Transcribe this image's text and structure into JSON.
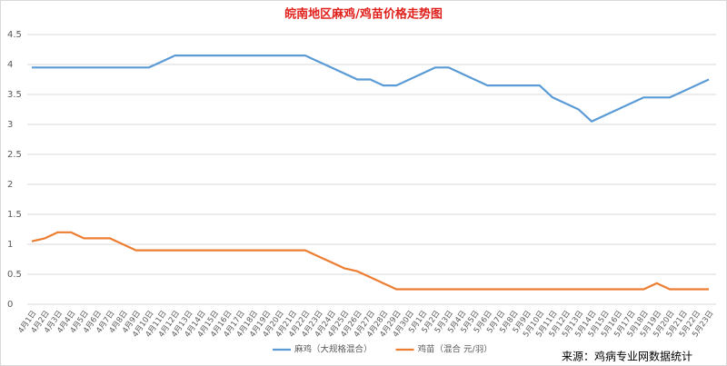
{
  "chart_data": {
    "type": "line",
    "title": "皖南地区麻鸡/鸡苗价格走势图",
    "source": "来源：鸡病专业网数据统计",
    "categories": [
      "4月1日",
      "4月2日",
      "4月3日",
      "4月4日",
      "4月5日",
      "4月6日",
      "4月7日",
      "4月8日",
      "4月9日",
      "4月10日",
      "4月11日",
      "4月12日",
      "4月13日",
      "4月14日",
      "4月15日",
      "4月16日",
      "4月17日",
      "4月18日",
      "4月19日",
      "4月20日",
      "4月21日",
      "4月22日",
      "4月23日",
      "4月24日",
      "4月25日",
      "4月26日",
      "4月27日",
      "4月28日",
      "4月29日",
      "4月30日",
      "5月1日",
      "5月2日",
      "5月3日",
      "5月4日",
      "5月5日",
      "5月6日",
      "5月7日",
      "5月8日",
      "5月9日",
      "5月10日",
      "5月11日",
      "5月12日",
      "5月13日",
      "5月14日",
      "5月15日",
      "5月16日",
      "5月17日",
      "5月18日",
      "5月19日",
      "5月20日",
      "5月21日",
      "5月22日",
      "5月23日"
    ],
    "series": [
      {
        "name": "麻鸡（大规格混合）",
        "color": "#5b9bd5",
        "values": [
          3.95,
          3.95,
          3.95,
          3.95,
          3.95,
          3.95,
          3.95,
          3.95,
          3.95,
          3.95,
          4.05,
          4.15,
          4.15,
          4.15,
          4.15,
          4.15,
          4.15,
          4.15,
          4.15,
          4.15,
          4.15,
          4.15,
          4.05,
          3.95,
          3.85,
          3.75,
          3.75,
          3.65,
          3.65,
          3.75,
          3.85,
          3.95,
          3.95,
          3.85,
          3.75,
          3.65,
          3.65,
          3.65,
          3.65,
          3.65,
          3.45,
          3.35,
          3.25,
          3.05,
          3.15,
          3.25,
          3.35,
          3.45,
          3.45,
          3.45,
          3.55,
          3.65,
          3.75
        ]
      },
      {
        "name": "鸡苗（混合 元/羽）",
        "color": "#ed7d31",
        "values": [
          1.05,
          1.1,
          1.2,
          1.2,
          1.1,
          1.1,
          1.1,
          1.0,
          0.9,
          0.9,
          0.9,
          0.9,
          0.9,
          0.9,
          0.9,
          0.9,
          0.9,
          0.9,
          0.9,
          0.9,
          0.9,
          0.9,
          0.8,
          0.7,
          0.6,
          0.55,
          0.45,
          0.35,
          0.25,
          0.25,
          0.25,
          0.25,
          0.25,
          0.25,
          0.25,
          0.25,
          0.25,
          0.25,
          0.25,
          0.25,
          0.25,
          0.25,
          0.25,
          0.25,
          0.25,
          0.25,
          0.25,
          0.25,
          0.35,
          0.25,
          0.25,
          0.25,
          0.25
        ]
      }
    ],
    "ylim": [
      0,
      4.5
    ],
    "yticks": [
      0,
      0.5,
      1,
      1.5,
      2,
      2.5,
      3,
      3.5,
      4,
      4.5
    ],
    "grid": true,
    "legend": "bottom"
  }
}
